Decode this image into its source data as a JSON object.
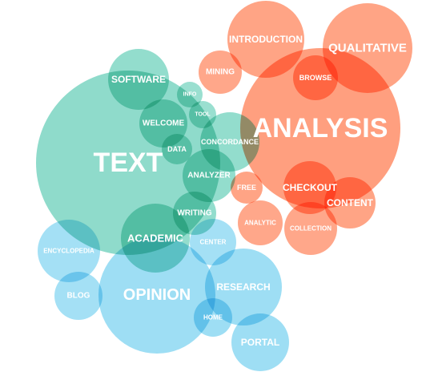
{
  "colors": {
    "teal": "#6fd1bc",
    "orange": "#ff8a63",
    "blue": "#8dd8f2"
  },
  "bubbles": [
    {
      "key": "text",
      "label": "TEXT",
      "group": "teal"
    },
    {
      "key": "analysis",
      "label": "ANALYSIS",
      "group": "orange"
    },
    {
      "key": "opinion",
      "label": "OPINION",
      "group": "blue"
    },
    {
      "key": "qualitative",
      "label": "QUALITATIVE",
      "group": "orange"
    },
    {
      "key": "introduction",
      "label": "INTRODUCTION",
      "group": "orange"
    },
    {
      "key": "software",
      "label": "SOFTWARE",
      "group": "teal"
    },
    {
      "key": "mining",
      "label": "MINING",
      "group": "orange"
    },
    {
      "key": "browse",
      "label": "BROWSE",
      "group": "orange"
    },
    {
      "key": "info",
      "label": "INFO",
      "group": "teal"
    },
    {
      "key": "tool",
      "label": "TOOL",
      "group": "teal"
    },
    {
      "key": "welcome",
      "label": "WELCOME",
      "group": "teal"
    },
    {
      "key": "data",
      "label": "DATA",
      "group": "teal"
    },
    {
      "key": "concordance",
      "label": "CONCORDANCE",
      "group": "teal"
    },
    {
      "key": "analyzer",
      "label": "ANALYZER",
      "group": "teal"
    },
    {
      "key": "free",
      "label": "FREE",
      "group": "orange"
    },
    {
      "key": "checkout",
      "label": "CHECKOUT",
      "group": "orange"
    },
    {
      "key": "content",
      "label": "CONTENT",
      "group": "orange"
    },
    {
      "key": "analytic",
      "label": "ANALYTIC",
      "group": "orange"
    },
    {
      "key": "collection",
      "label": "COLLECTION",
      "group": "orange"
    },
    {
      "key": "writing",
      "label": "WRITING",
      "group": "teal"
    },
    {
      "key": "academic",
      "label": "ACADEMIC",
      "group": "teal"
    },
    {
      "key": "center",
      "label": "CENTER",
      "group": "blue"
    },
    {
      "key": "encyclopedia",
      "label": "ENCYCLOPEDIA",
      "group": "blue"
    },
    {
      "key": "blog",
      "label": "BLOG",
      "group": "blue"
    },
    {
      "key": "research",
      "label": "RESEARCH",
      "group": "blue"
    },
    {
      "key": "home",
      "label": "HOME",
      "group": "blue"
    },
    {
      "key": "portal",
      "label": "PORTAL",
      "group": "blue"
    }
  ]
}
